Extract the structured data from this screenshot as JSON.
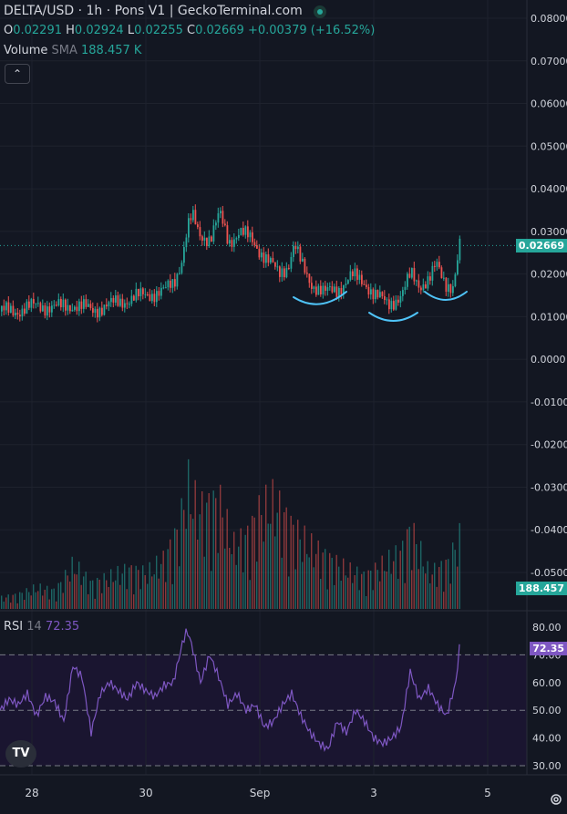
{
  "header": {
    "title": "DELTA/USD · 1h · Pons V1 | GeckoTerminal.com",
    "open_label": "O",
    "open": "0.02291",
    "high_label": "H",
    "high": "0.02924",
    "low_label": "L",
    "low": "0.02255",
    "close_label": "C",
    "close": "0.02669",
    "change": "+0.00379 (+16.52%)",
    "volume_label": "Volume",
    "volume_ma_label": "SMA",
    "volume_value": "188.457 K",
    "collapse_icon": "chevron-up-icon"
  },
  "colors": {
    "up": "#26a69a",
    "down": "#ef5350",
    "rsi": "#7e57c2",
    "annotation": "#4fc3f7",
    "background": "#131722"
  },
  "price_axis": {
    "ticks": [
      "0.08000",
      "0.07000",
      "0.06000",
      "0.05000",
      "0.04000",
      "0.03000",
      "0.02000",
      "0.01000",
      "0.0000",
      "-0.0100",
      "-0.0200",
      "-0.0300",
      "-0.0400",
      "-0.0500"
    ],
    "current_price_tag": "0.02669",
    "volume_tag": "188.457"
  },
  "rsi_pane": {
    "label": "RSI",
    "period": "14",
    "value": "72.35",
    "ticks": [
      "80.00",
      "70.00",
      "60.00",
      "50.00",
      "40.00",
      "30.00"
    ],
    "value_tag": "72.35"
  },
  "time_axis": {
    "ticks": [
      "28",
      "30",
      "Sep",
      "3",
      "5"
    ]
  },
  "branding": {
    "logo_text": "TV",
    "logo_icon": "tradingview-logo-icon",
    "settings_icon": "gear-icon"
  },
  "chart_data": {
    "type": "candlestick",
    "series_name": "DELTA/USD",
    "interval": "1h",
    "price_ylim": [
      -0.055,
      0.083
    ],
    "rsi_ylim": [
      25,
      83
    ],
    "x_ticks": [
      "28",
      "30",
      "Sep",
      "3",
      "5"
    ],
    "price_path": [
      [
        0,
        0.0112
      ],
      [
        20,
        0.0115
      ],
      [
        40,
        0.0127
      ],
      [
        60,
        0.0121
      ],
      [
        80,
        0.0128
      ],
      [
        100,
        0.0115
      ],
      [
        120,
        0.0128
      ],
      [
        140,
        0.0141
      ],
      [
        160,
        0.0152
      ],
      [
        180,
        0.016
      ],
      [
        190,
        0.018
      ],
      [
        198,
        0.023
      ],
      [
        205,
        0.031
      ],
      [
        210,
        0.0335
      ],
      [
        218,
        0.029
      ],
      [
        230,
        0.0285
      ],
      [
        240,
        0.034
      ],
      [
        250,
        0.0275
      ],
      [
        262,
        0.03
      ],
      [
        275,
        0.028
      ],
      [
        290,
        0.024
      ],
      [
        305,
        0.02
      ],
      [
        315,
        0.022
      ],
      [
        322,
        0.027
      ],
      [
        330,
        0.022
      ],
      [
        340,
        0.018
      ],
      [
        355,
        0.0155
      ],
      [
        370,
        0.0165
      ],
      [
        385,
        0.0195
      ],
      [
        400,
        0.018
      ],
      [
        410,
        0.015
      ],
      [
        425,
        0.013
      ],
      [
        440,
        0.015
      ],
      [
        450,
        0.02
      ],
      [
        460,
        0.0175
      ],
      [
        470,
        0.0185
      ],
      [
        478,
        0.022
      ],
      [
        488,
        0.018
      ],
      [
        496,
        0.017
      ],
      [
        502,
        0.024
      ],
      [
        505,
        0.0292
      ],
      [
        506,
        0.0267
      ]
    ],
    "volume_path": [
      [
        0,
        6
      ],
      [
        20,
        8
      ],
      [
        40,
        12
      ],
      [
        60,
        10
      ],
      [
        80,
        25
      ],
      [
        100,
        14
      ],
      [
        120,
        18
      ],
      [
        140,
        22
      ],
      [
        160,
        20
      ],
      [
        180,
        28
      ],
      [
        196,
        45
      ],
      [
        205,
        70
      ],
      [
        212,
        60
      ],
      [
        220,
        55
      ],
      [
        240,
        60
      ],
      [
        255,
        35
      ],
      [
        270,
        40
      ],
      [
        285,
        55
      ],
      [
        300,
        60
      ],
      [
        320,
        45
      ],
      [
        340,
        35
      ],
      [
        360,
        28
      ],
      [
        380,
        22
      ],
      [
        400,
        18
      ],
      [
        420,
        25
      ],
      [
        440,
        32
      ],
      [
        450,
        45
      ],
      [
        470,
        20
      ],
      [
        490,
        25
      ],
      [
        504,
        40
      ]
    ],
    "rsi_path": [
      [
        0,
        50
      ],
      [
        10,
        54
      ],
      [
        20,
        52
      ],
      [
        30,
        56
      ],
      [
        40,
        48
      ],
      [
        50,
        55
      ],
      [
        60,
        53
      ],
      [
        70,
        46
      ],
      [
        80,
        66
      ],
      [
        90,
        62
      ],
      [
        100,
        42
      ],
      [
        110,
        56
      ],
      [
        120,
        60
      ],
      [
        130,
        57
      ],
      [
        140,
        54
      ],
      [
        150,
        60
      ],
      [
        160,
        57
      ],
      [
        170,
        55
      ],
      [
        180,
        59
      ],
      [
        190,
        60
      ],
      [
        200,
        74
      ],
      [
        205,
        79
      ],
      [
        210,
        74
      ],
      [
        220,
        60
      ],
      [
        230,
        70
      ],
      [
        240,
        62
      ],
      [
        250,
        52
      ],
      [
        260,
        56
      ],
      [
        270,
        50
      ],
      [
        280,
        52
      ],
      [
        290,
        44
      ],
      [
        300,
        46
      ],
      [
        310,
        52
      ],
      [
        320,
        56
      ],
      [
        330,
        48
      ],
      [
        340,
        42
      ],
      [
        350,
        38
      ],
      [
        360,
        36
      ],
      [
        370,
        46
      ],
      [
        380,
        42
      ],
      [
        390,
        50
      ],
      [
        400,
        46
      ],
      [
        410,
        40
      ],
      [
        420,
        38
      ],
      [
        430,
        40
      ],
      [
        440,
        44
      ],
      [
        450,
        64
      ],
      [
        460,
        54
      ],
      [
        470,
        58
      ],
      [
        480,
        52
      ],
      [
        490,
        48
      ],
      [
        500,
        60
      ],
      [
        504,
        72.35
      ]
    ],
    "annotations": [
      {
        "type": "arc",
        "shape": "smile"
      },
      {
        "type": "arc",
        "shape": "smile"
      },
      {
        "type": "arc",
        "shape": "smile"
      }
    ]
  }
}
